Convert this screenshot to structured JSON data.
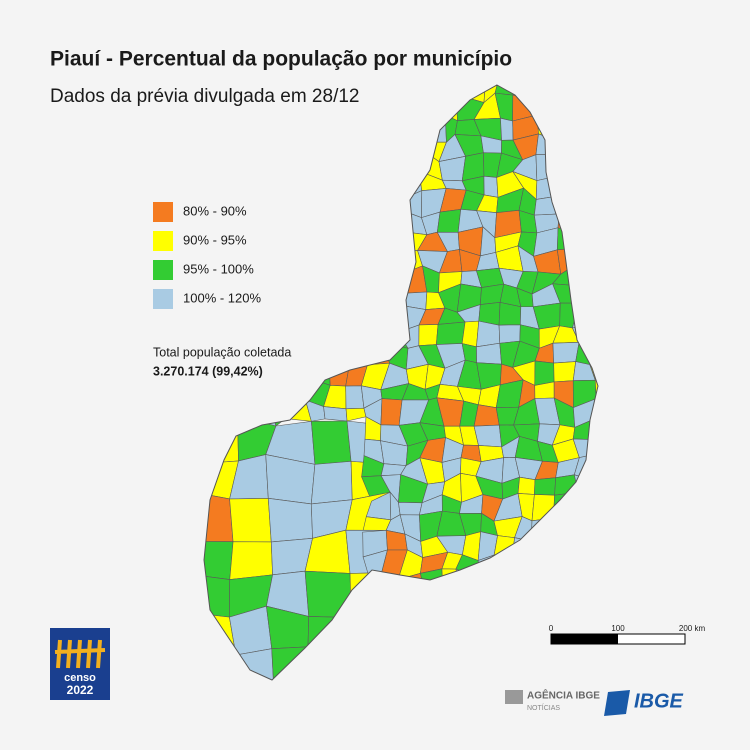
{
  "header": {
    "title": "Piauí - Percentual da população por município",
    "subtitle": "Dados da prévia divulgada em 28/12"
  },
  "legend": {
    "items": [
      {
        "label": "80% - 90%",
        "color": "#f47b20"
      },
      {
        "label": "90% - 95%",
        "color": "#ffff00"
      },
      {
        "label": "95% - 100%",
        "color": "#33cc33"
      },
      {
        "label": "100% - 120%",
        "color": "#a9cbe3"
      }
    ]
  },
  "total": {
    "label": "Total população coletada",
    "value": "3.270.174 (99,42%)"
  },
  "scale_bar": {
    "ticks": [
      "0",
      "100",
      "200 km"
    ]
  },
  "logos": {
    "censo_word": "censo",
    "censo_year": "2022",
    "agencia": "AGÊNCIA IBGE",
    "noticias": "NOTÍCIAS",
    "ibge": "IBGE"
  }
}
